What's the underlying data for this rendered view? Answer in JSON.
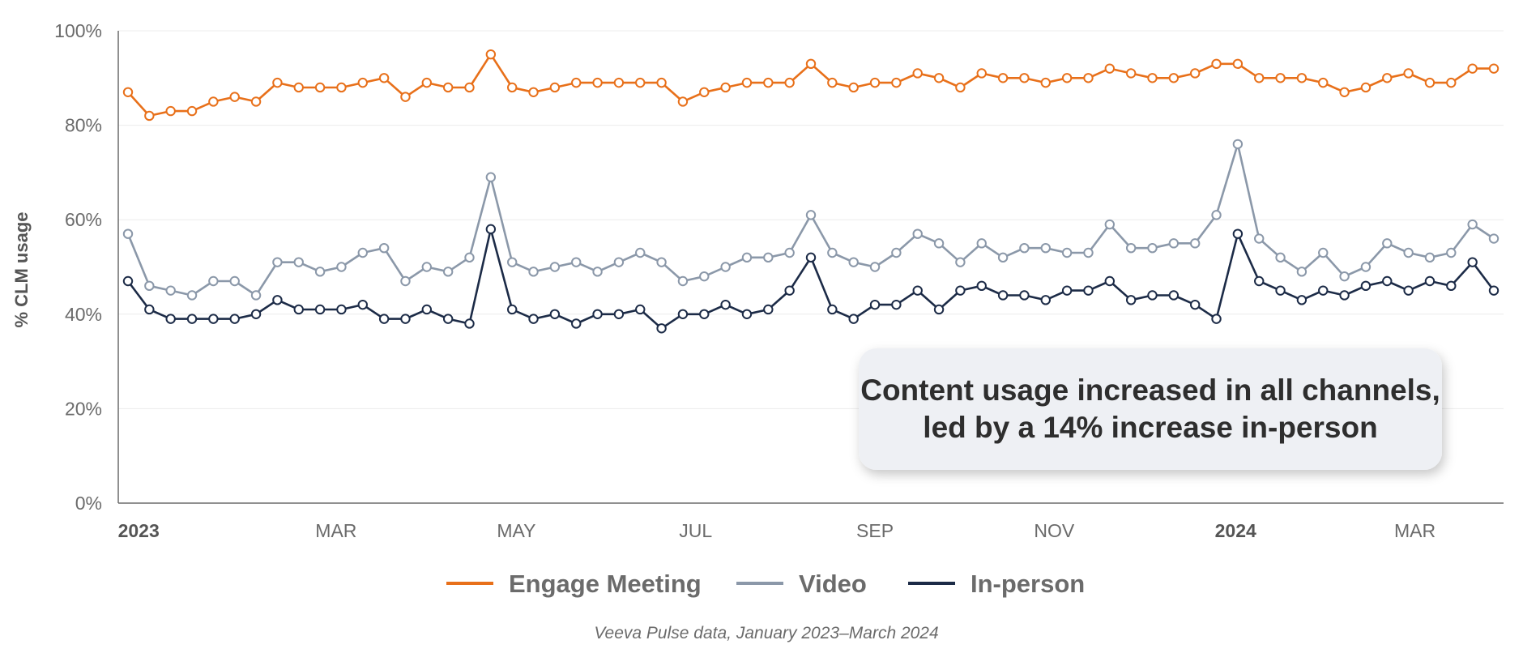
{
  "chart_data": {
    "type": "line",
    "ylabel": "% CLM usage",
    "ylim": [
      0,
      100
    ],
    "y_ticks": [
      "0%",
      "20%",
      "40%",
      "60%",
      "80%",
      "100%"
    ],
    "y_tick_values": [
      0,
      20,
      40,
      60,
      80,
      100
    ],
    "x_ticks": [
      {
        "label": "2023",
        "index": 0.5,
        "bold": true
      },
      {
        "label": "MAR",
        "index": 9.75,
        "bold": false
      },
      {
        "label": "MAY",
        "index": 18.2,
        "bold": false
      },
      {
        "label": "JUL",
        "index": 26.6,
        "bold": false
      },
      {
        "label": "SEP",
        "index": 35.0,
        "bold": false
      },
      {
        "label": "NOV",
        "index": 43.4,
        "bold": false
      },
      {
        "label": "2024",
        "index": 51.9,
        "bold": true
      },
      {
        "label": "MAR",
        "index": 60.3,
        "bold": false
      }
    ],
    "grid": "horizontal",
    "legend_position": "bottom",
    "series": [
      {
        "name": "Engage Meeting",
        "color": "#e8701a",
        "values": [
          87,
          82,
          83,
          83,
          85,
          86,
          85,
          89,
          88,
          88,
          88,
          89,
          90,
          86,
          89,
          88,
          88,
          95,
          88,
          87,
          88,
          89,
          89,
          89,
          89,
          89,
          85,
          87,
          88,
          89,
          89,
          89,
          93,
          89,
          88,
          89,
          89,
          91,
          90,
          88,
          91,
          90,
          90,
          89,
          90,
          90,
          92,
          91,
          90,
          90,
          91,
          93,
          93,
          90,
          90,
          90,
          89,
          87,
          88,
          90,
          91,
          89,
          89,
          92,
          92
        ]
      },
      {
        "name": "Video",
        "color": "#8b98a9",
        "values": [
          57,
          46,
          45,
          44,
          47,
          47,
          44,
          51,
          51,
          49,
          50,
          53,
          54,
          47,
          50,
          49,
          52,
          69,
          51,
          49,
          50,
          51,
          49,
          51,
          53,
          51,
          47,
          48,
          50,
          52,
          52,
          53,
          61,
          53,
          51,
          50,
          53,
          57,
          55,
          51,
          55,
          52,
          54,
          54,
          53,
          53,
          59,
          54,
          54,
          55,
          55,
          61,
          76,
          56,
          52,
          49,
          53,
          48,
          50,
          55,
          53,
          52,
          53,
          59,
          56
        ]
      },
      {
        "name": "In-person",
        "color": "#1c2b47",
        "values": [
          47,
          41,
          39,
          39,
          39,
          39,
          40,
          43,
          41,
          41,
          41,
          42,
          39,
          39,
          41,
          39,
          38,
          58,
          41,
          39,
          40,
          38,
          40,
          40,
          41,
          37,
          40,
          40,
          42,
          40,
          41,
          45,
          52,
          41,
          39,
          42,
          42,
          45,
          41,
          45,
          46,
          44,
          44,
          43,
          45,
          45,
          47,
          43,
          44,
          44,
          42,
          39,
          57,
          47,
          45,
          43,
          45,
          44,
          46,
          47,
          45,
          47,
          46,
          51,
          45
        ]
      }
    ],
    "annotation": {
      "line1": "Content usage increased in all channels,",
      "line2": "led by a 14% increase in-person"
    },
    "caption": "Veeva Pulse data, January 2023–March 2024"
  }
}
